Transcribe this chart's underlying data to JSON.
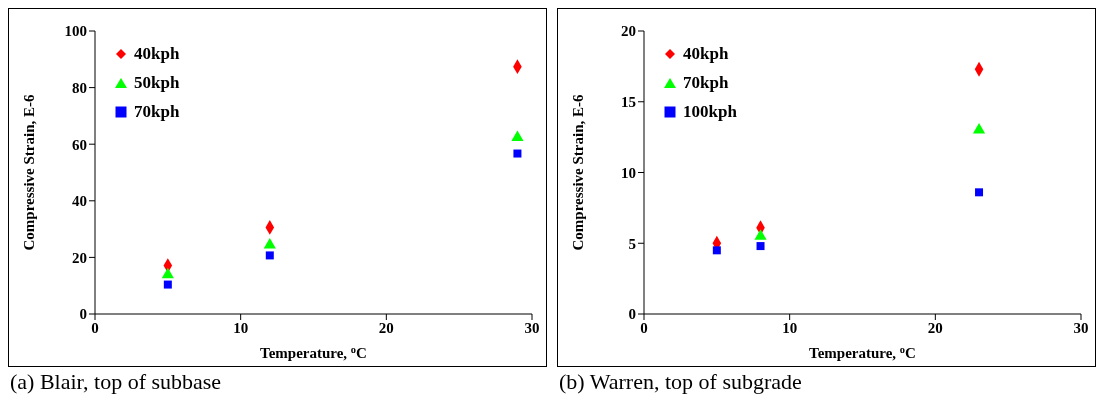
{
  "chart_data": [
    {
      "type": "scatter",
      "xlabel": "Temperature, $^{o}$C",
      "ylabel": "Compressive Strain, E-6",
      "annotations": [
        "(a) Blair, top of subbase"
      ],
      "xlim": [
        0,
        30
      ],
      "xticks": [
        0,
        10,
        20,
        30
      ],
      "ylim": [
        0,
        100
      ],
      "yticks": [
        0,
        20,
        40,
        60,
        80,
        100
      ],
      "grid": false,
      "legend": "top left",
      "series": [
        {
          "name": "40kph",
          "color": "#ff0000",
          "marker": "diamond",
          "x": [
            5,
            12,
            29
          ],
          "values": [
            17.1,
            30.6,
            87.4
          ]
        },
        {
          "name": "50kph",
          "color": "#00ff00",
          "marker": "triangle",
          "x": [
            5,
            12,
            29
          ],
          "values": [
            13.9,
            24.4,
            62.4
          ]
        },
        {
          "name": "70kph",
          "color": "#0000ff",
          "marker": "square",
          "x": [
            5,
            12,
            29
          ],
          "values": [
            10.4,
            20.7,
            56.7
          ]
        }
      ]
    },
    {
      "type": "scatter",
      "xlabel": "Temperature, $^{o}$C",
      "ylabel": "Compressive Strain, E-6",
      "annotations": [
        "(b) Warren, top of subgrade"
      ],
      "xlim": [
        0,
        30
      ],
      "xticks": [
        0,
        10,
        20,
        30
      ],
      "ylim": [
        0,
        20
      ],
      "yticks": [
        0,
        5,
        10,
        15,
        20
      ],
      "grid": false,
      "legend": "top left",
      "series": [
        {
          "name": "40kph",
          "color": "#ff0000",
          "marker": "diamond",
          "x": [
            5,
            8,
            23
          ],
          "values": [
            5.0,
            6.1,
            17.3
          ]
        },
        {
          "name": "70kph",
          "color": "#00ff00",
          "marker": "triangle",
          "x": [
            8,
            23
          ],
          "values": [
            5.5,
            13.0
          ]
        },
        {
          "name": "100kph",
          "color": "#0000ff",
          "marker": "square",
          "x": [
            5,
            8,
            23
          ],
          "values": [
            4.5,
            4.8,
            8.6
          ]
        }
      ]
    }
  ]
}
